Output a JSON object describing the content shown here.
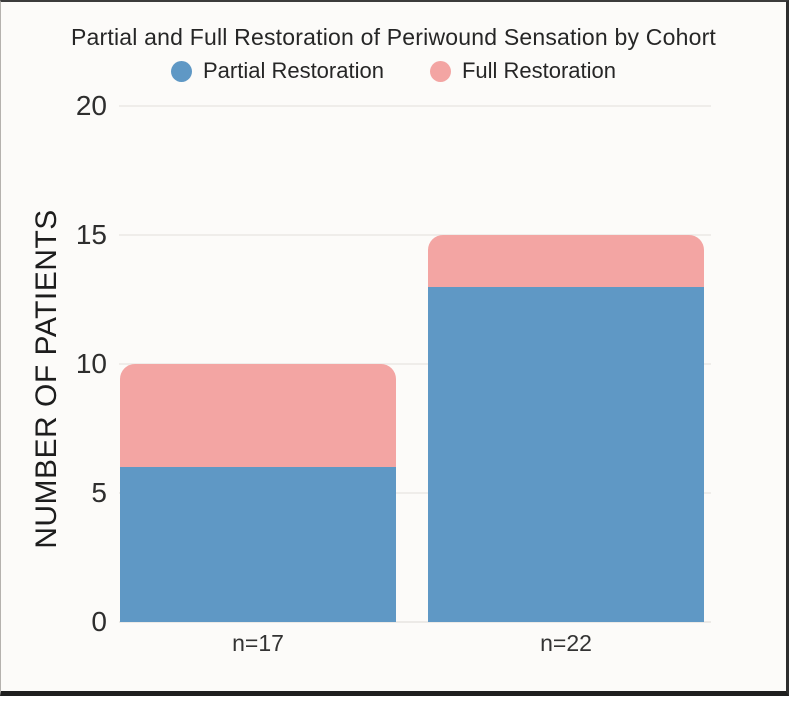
{
  "title": "Partial and Full Restoration of Periwound Sensation by Cohort",
  "legend": {
    "items": [
      {
        "label": "Partial Restoration",
        "color": "#5f98c5"
      },
      {
        "label": "Full Restoration",
        "color": "#f3a5a3"
      }
    ]
  },
  "chart_data": {
    "type": "bar",
    "stacked": true,
    "title": "Partial and Full Restoration of Periwound Sensation by Cohort",
    "categories": [
      "n=17",
      "n=22"
    ],
    "series": [
      {
        "name": "Partial Restoration",
        "color": "#5f98c5",
        "values": [
          6,
          13
        ]
      },
      {
        "name": "Full Restoration",
        "color": "#f3a5a3",
        "values": [
          4,
          2
        ]
      }
    ],
    "stack_totals": [
      10,
      15
    ],
    "xlabel": "",
    "ylabel": "NUMBER OF PATIENTS",
    "ylim": [
      0,
      20
    ],
    "yticks": [
      0,
      5,
      10,
      15,
      20
    ],
    "grid": "horizontal",
    "legend_position": "top"
  }
}
